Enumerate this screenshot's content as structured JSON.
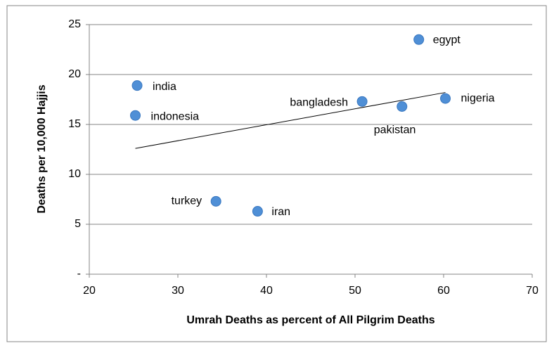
{
  "chart_data": {
    "type": "scatter",
    "x_label": "Umrah Deaths as percent of All Pilgrim Deaths",
    "y_label": "Deaths per 10,000 Hajjis",
    "point_labels": [
      "india",
      "indonesia",
      "turkey",
      "iran",
      "bangladesh",
      "pakistan",
      "egypt",
      "nigeria"
    ],
    "x": [
      25.4,
      25.2,
      34.3,
      39.0,
      50.8,
      55.3,
      57.2,
      60.2
    ],
    "y": [
      18.9,
      15.9,
      7.3,
      6.3,
      17.3,
      16.8,
      23.5,
      17.6
    ],
    "color": "#4f8fd6",
    "trendline": {
      "x": [
        25.2,
        60.2
      ],
      "y": [
        12.6,
        18.2
      ]
    },
    "xlim": [
      20,
      70
    ],
    "ylim": [
      0,
      25
    ],
    "xticks": [
      20,
      30,
      40,
      50,
      60,
      70
    ],
    "yticks": [
      {
        "value": 0,
        "label": "-"
      },
      5,
      10,
      15,
      20,
      25
    ],
    "grid": true
  }
}
